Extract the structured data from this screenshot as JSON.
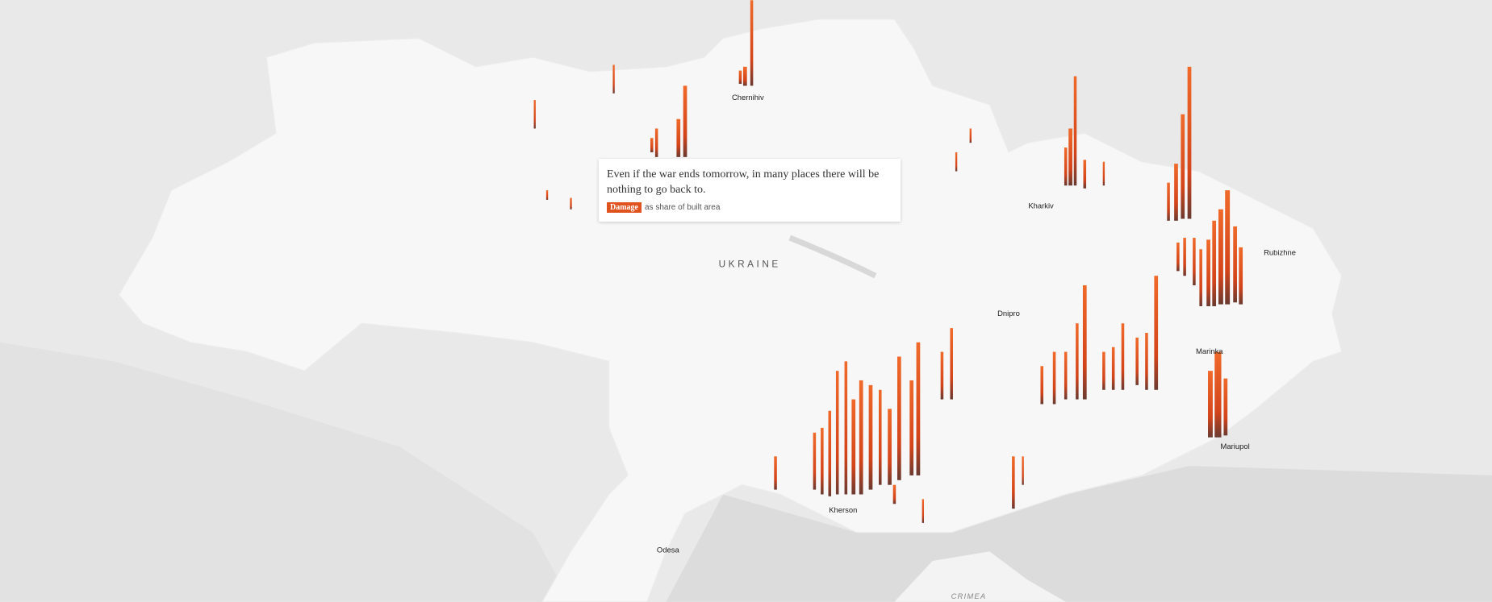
{
  "map": {
    "country_label": "UKRAINE",
    "region_label": "CRIMEA",
    "cities": [
      "Chernihiv",
      "Kharkiv",
      "Rubizhne",
      "Dnipro",
      "Marinka",
      "Mariupol",
      "Kherson",
      "Odesa"
    ]
  },
  "card": {
    "text": "Even if the war ends tomorrow, in many places there will be nothing to go back to.",
    "legend_label": "Damage",
    "legend_note": "as share of built area"
  }
}
